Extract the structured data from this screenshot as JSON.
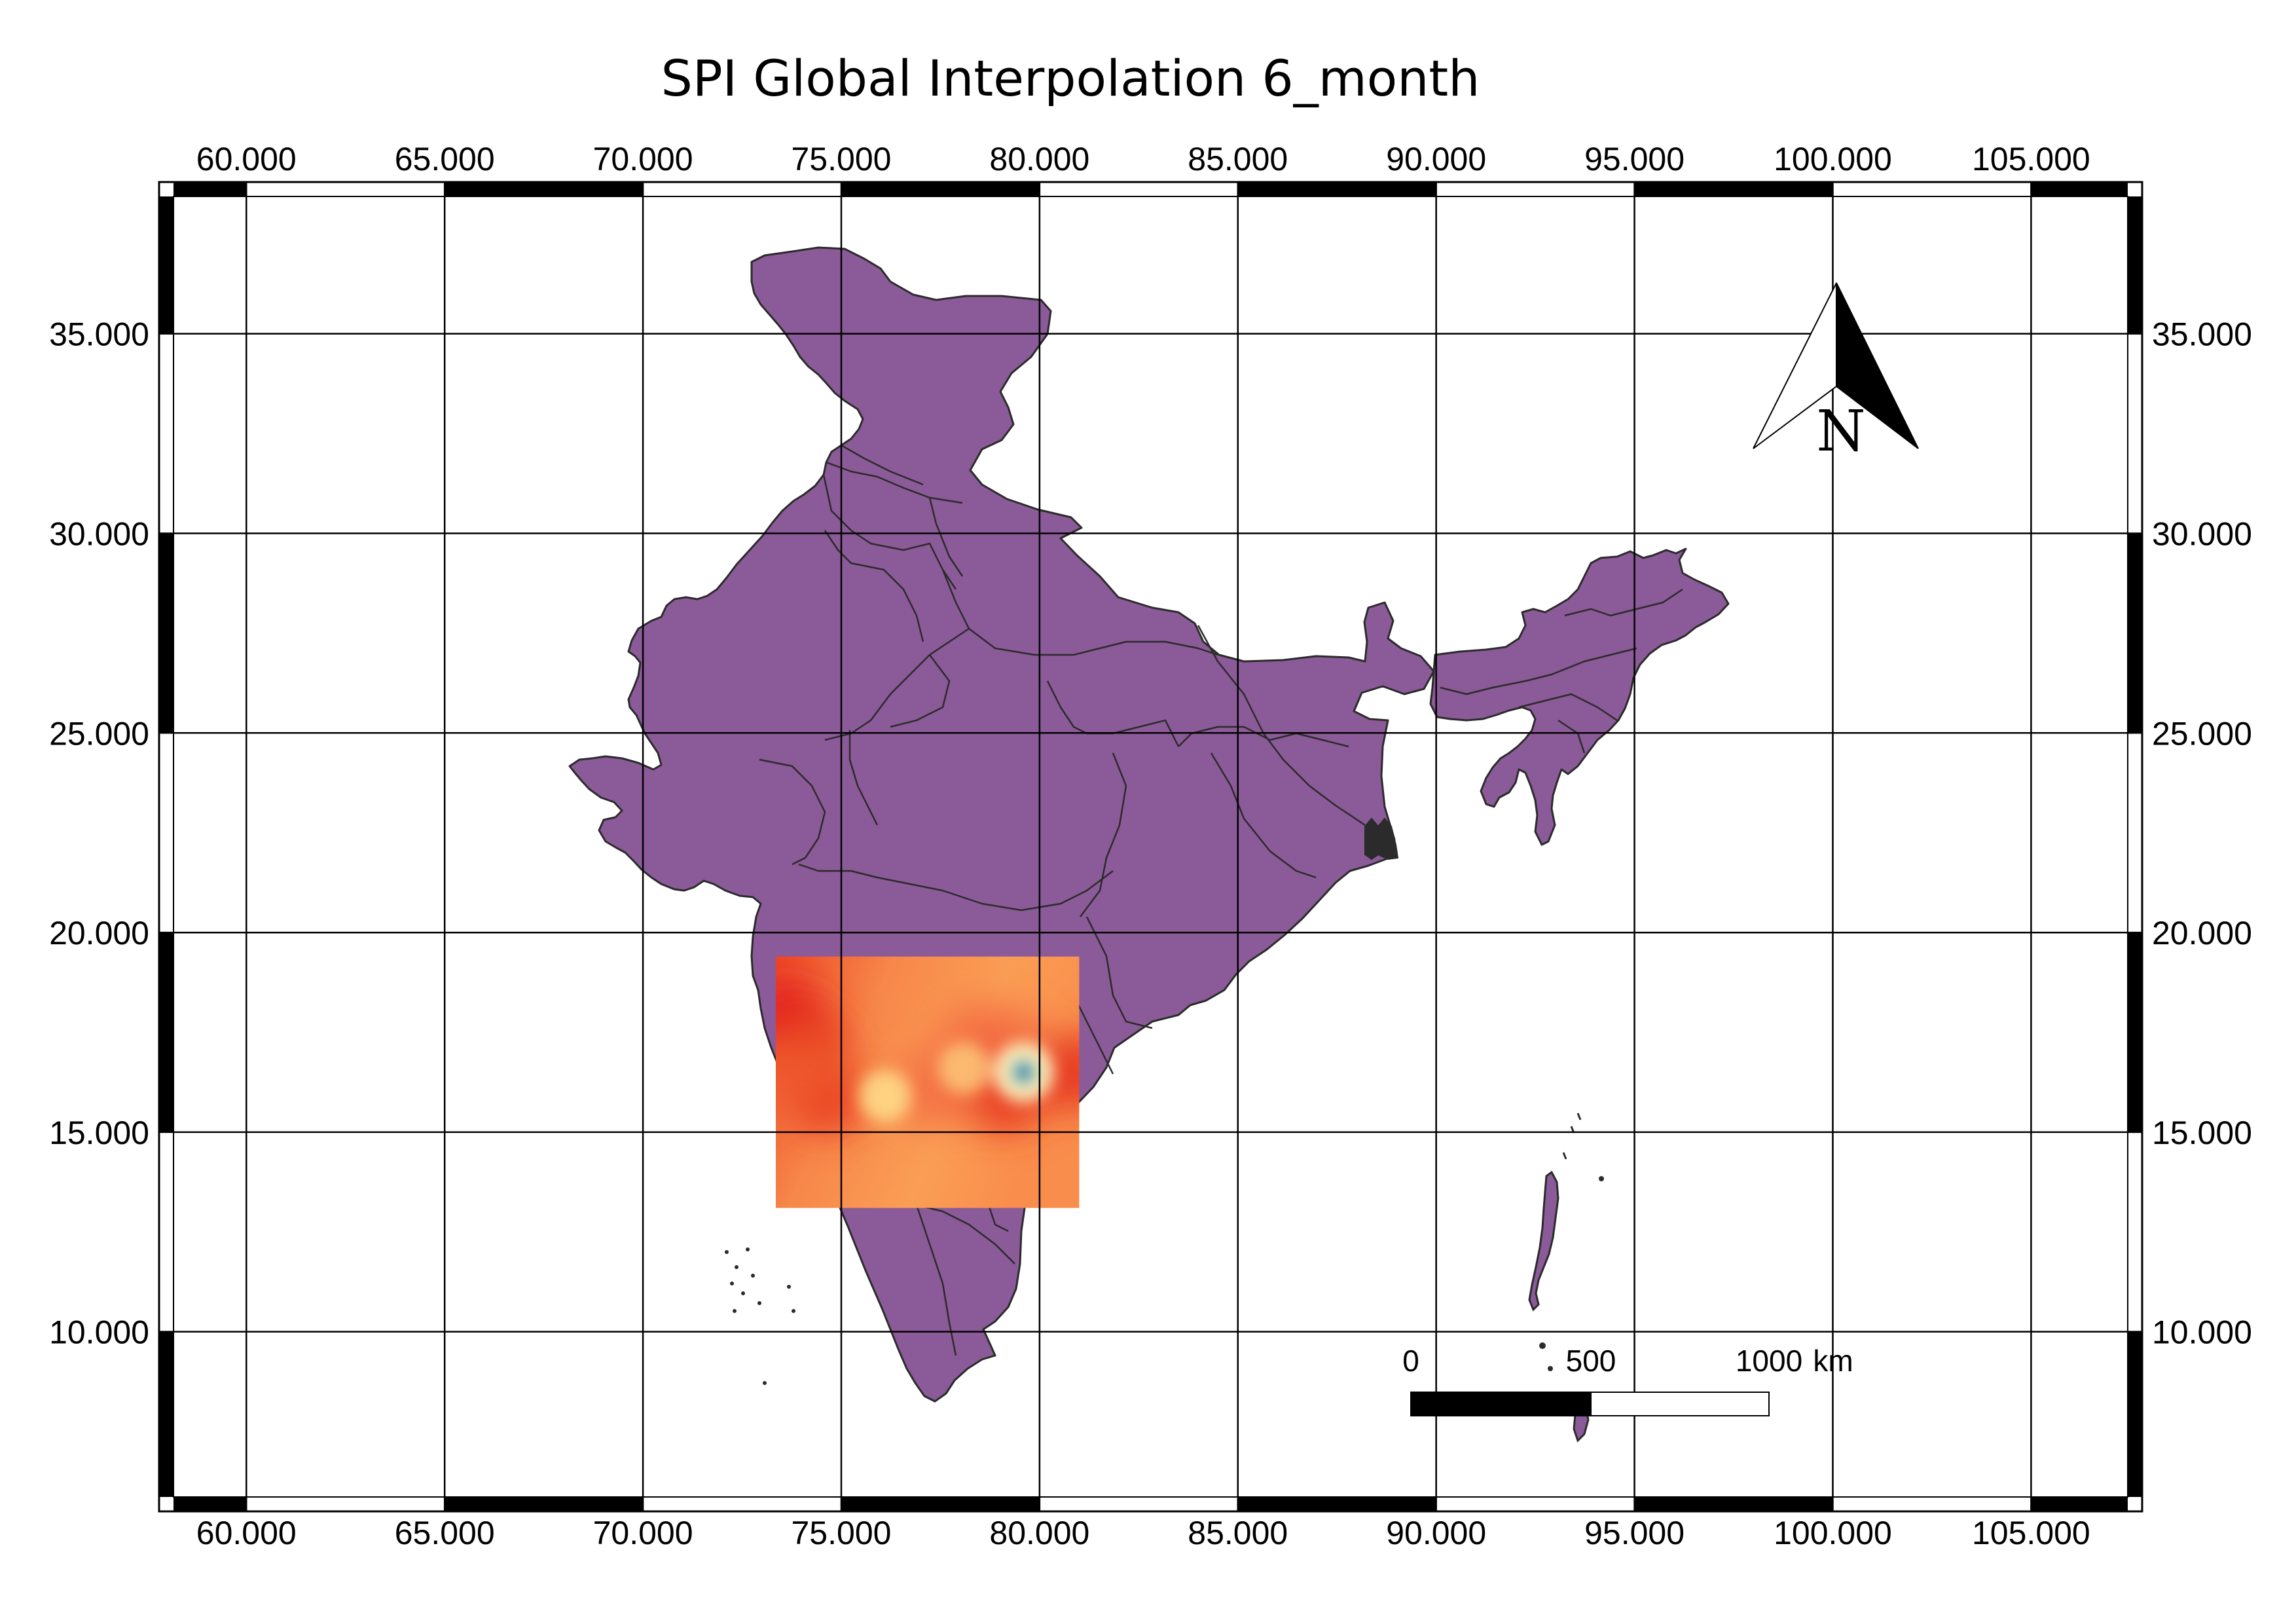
{
  "map": {
    "title": "SPI Global Interpolation 6_month",
    "frame": {
      "lon_min": 57.8,
      "lon_max": 107.8,
      "lat_min": 5.5,
      "lat_max": 38.8
    },
    "grid_lons": [
      60,
      65,
      70,
      75,
      80,
      85,
      90,
      95,
      100,
      105
    ],
    "grid_lats": [
      10,
      15,
      20,
      25,
      30,
      35
    ],
    "lon_labels": [
      "60.000",
      "65.000",
      "70.000",
      "75.000",
      "80.000",
      "85.000",
      "90.000",
      "95.000",
      "100.000",
      "105.000"
    ],
    "lat_labels": [
      "10.000",
      "15.000",
      "20.000",
      "25.000",
      "30.000",
      "35.000"
    ],
    "north_arrow_label": "N",
    "scale_bar": {
      "label_0": "0",
      "label_mid": "500",
      "label_end": "1000",
      "unit": "km"
    },
    "colors": {
      "land": "#8b5a98",
      "border": "#2b2b2b",
      "grid": "#000000",
      "frame": "#000000",
      "background": "#ffffff"
    },
    "raster": {
      "lon_min": 73.35,
      "lon_max": 81.0,
      "lat_min": 13.1,
      "lat_max": 19.4,
      "base_color": "#f99a52",
      "high_color": "#e6141b",
      "hotspots": [
        {
          "lon": 73.6,
          "lat": 17.9,
          "color": "#e21a1c"
        },
        {
          "lon": 74.2,
          "lat": 17.2,
          "color": "#e6341f"
        },
        {
          "lon": 74.6,
          "lat": 15.9,
          "color": "#e8351f"
        },
        {
          "lon": 74.0,
          "lat": 16.5,
          "color": "#ee5a2d"
        },
        {
          "lon": 78.5,
          "lat": 17.3,
          "color": "#f46d43"
        },
        {
          "lon": 79.2,
          "lat": 17.1,
          "color": "#f46d43"
        },
        {
          "lon": 79.1,
          "lat": 15.9,
          "color": "#e8351f"
        },
        {
          "lon": 80.9,
          "lat": 16.5,
          "color": "#e6341f"
        },
        {
          "lon": 77.4,
          "lat": 16.1,
          "color": "#f46d43"
        }
      ],
      "lowspots": [
        {
          "lon": 79.6,
          "lat": 16.5,
          "color": "#1a7ab5"
        },
        {
          "lon": 76.1,
          "lat": 15.9,
          "color": "#fee08b"
        },
        {
          "lon": 78.1,
          "lat": 16.6,
          "color": "#fdc878"
        }
      ]
    }
  }
}
